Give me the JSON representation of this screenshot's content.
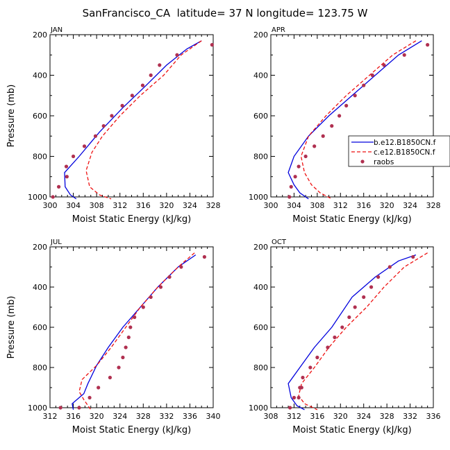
{
  "figure_title": "SanFrancisco_CA  latitude= 37 N longitude= 123.75 W",
  "colors": {
    "model_b": "#0000dd",
    "model_c": "#ee1111",
    "raobs": "#b03050"
  },
  "legend": {
    "entries": [
      "b.e12.B1850CN.f",
      "c.e12.B1850CN.f",
      "raobs"
    ]
  },
  "chart_data": [
    {
      "type": "line",
      "panel": "JAN",
      "xlabel": "Moist Static Energy (kJ/kg)",
      "ylabel": "Pressure (mb)",
      "xlim": [
        300,
        328
      ],
      "xticks": [
        300,
        304,
        308,
        312,
        316,
        320,
        324,
        328
      ],
      "ylim": [
        1000,
        200
      ],
      "yticks": [
        200,
        400,
        600,
        800,
        1000
      ],
      "series": [
        {
          "name": "b.e12.B1850CN.f",
          "style": "solid",
          "x": [
            326.0,
            323.5,
            320.0,
            316.5,
            312.5,
            308.5,
            305.0,
            302.5,
            302.6,
            303.5,
            304.5
          ],
          "y": [
            230,
            270,
            350,
            450,
            560,
            680,
            800,
            880,
            950,
            990,
            1010
          ]
        },
        {
          "name": "c.e12.B1850CN.f",
          "style": "dashed",
          "x": [
            326.0,
            322.5,
            319.5,
            315.5,
            312.0,
            309.0,
            307.2,
            306.2,
            306.8,
            308.5,
            310.5
          ],
          "y": [
            230,
            300,
            400,
            500,
            600,
            700,
            780,
            870,
            950,
            990,
            1010
          ]
        },
        {
          "name": "raobs",
          "style": "markers",
          "x": [
            327.8,
            321.8,
            318.8,
            317.3,
            315.9,
            314.1,
            312.4,
            310.6,
            309.2,
            307.8,
            305.9,
            304.0,
            302.8,
            302.9,
            301.5,
            300.5
          ],
          "y": [
            250,
            300,
            350,
            400,
            450,
            500,
            550,
            600,
            650,
            700,
            750,
            800,
            850,
            900,
            950,
            1000
          ]
        }
      ]
    },
    {
      "type": "line",
      "panel": "APR",
      "xlabel": "Moist Static Energy (kJ/kg)",
      "ylabel": "",
      "xlim": [
        300,
        328
      ],
      "xticks": [
        300,
        304,
        308,
        312,
        316,
        320,
        324,
        328
      ],
      "ylim": [
        1000,
        200
      ],
      "yticks": [
        200,
        400,
        600,
        800,
        1000
      ],
      "series": [
        {
          "name": "b.e12.B1850CN.f",
          "style": "solid",
          "x": [
            326.0,
            322.0,
            318.0,
            314.0,
            310.0,
            306.5,
            304.0,
            303.0,
            304.0,
            305.0,
            306.5
          ],
          "y": [
            230,
            300,
            400,
            500,
            600,
            700,
            800,
            880,
            940,
            980,
            1010
          ]
        },
        {
          "name": "c.e12.B1850CN.f",
          "style": "dashed",
          "x": [
            325.0,
            321.0,
            317.0,
            313.0,
            309.5,
            306.5,
            305.2,
            305.8,
            307.0,
            308.5,
            310.5
          ],
          "y": [
            230,
            300,
            400,
            500,
            600,
            700,
            800,
            880,
            940,
            980,
            1010
          ]
        },
        {
          "name": "raobs",
          "style": "markers",
          "x": [
            327.0,
            323.0,
            319.5,
            317.5,
            316.0,
            314.5,
            313.0,
            311.8,
            310.5,
            309.0,
            307.5,
            306.0,
            304.8,
            304.2,
            303.5,
            303.2
          ],
          "y": [
            250,
            300,
            350,
            400,
            450,
            500,
            550,
            600,
            650,
            700,
            750,
            800,
            850,
            900,
            950,
            1000
          ]
        }
      ]
    },
    {
      "type": "line",
      "panel": "JUL",
      "xlabel": "Moist Static Energy (kJ/kg)",
      "ylabel": "Pressure (mb)",
      "xlim": [
        312,
        340
      ],
      "xticks": [
        312,
        316,
        320,
        324,
        328,
        332,
        336,
        340
      ],
      "ylim": [
        1000,
        200
      ],
      "yticks": [
        200,
        400,
        600,
        800,
        1000
      ],
      "series": [
        {
          "name": "b.e12.B1850CN.f",
          "style": "solid",
          "x": [
            337.0,
            334.0,
            330.5,
            327.5,
            324.5,
            322.0,
            320.0,
            318.5,
            317.8,
            317.0,
            315.8,
            316.0
          ],
          "y": [
            240,
            300,
            400,
            500,
            600,
            700,
            790,
            880,
            930,
            950,
            980,
            1010
          ]
        },
        {
          "name": "c.e12.B1850CN.f",
          "style": "dashed",
          "x": [
            336.8,
            334.0,
            330.5,
            327.5,
            325.0,
            322.5,
            320.0,
            317.5,
            317.0,
            317.8,
            319.0
          ],
          "y": [
            230,
            300,
            400,
            500,
            600,
            700,
            790,
            860,
            920,
            960,
            1010
          ]
        },
        {
          "name": "raobs",
          "style": "markers",
          "x": [
            338.5,
            334.5,
            332.5,
            331.0,
            329.3,
            328.0,
            326.5,
            325.8,
            325.5,
            325.0,
            324.5,
            323.8,
            322.3,
            320.3,
            318.8,
            317.0,
            313.8
          ],
          "y": [
            250,
            300,
            350,
            400,
            450,
            500,
            550,
            600,
            650,
            700,
            750,
            800,
            850,
            900,
            950,
            1000,
            1000
          ]
        }
      ]
    },
    {
      "type": "line",
      "panel": "OCT",
      "xlabel": "Moist Static Energy (kJ/kg)",
      "ylabel": "",
      "xlim": [
        308,
        336
      ],
      "xticks": [
        308,
        312,
        316,
        320,
        324,
        328,
        332,
        336
      ],
      "ylim": [
        1000,
        200
      ],
      "yticks": [
        200,
        400,
        600,
        800,
        1000
      ],
      "series": [
        {
          "name": "b.e12.B1850CN.f",
          "style": "solid",
          "x": [
            333.0,
            330.0,
            326.0,
            322.0,
            318.5,
            315.5,
            313.0,
            311.0,
            311.5,
            312.5,
            313.8
          ],
          "y": [
            240,
            270,
            350,
            450,
            600,
            700,
            800,
            880,
            950,
            990,
            1010
          ]
        },
        {
          "name": "c.e12.B1850CN.f",
          "style": "dashed",
          "x": [
            335.0,
            331.0,
            327.5,
            324.5,
            321.0,
            318.0,
            315.5,
            313.3,
            312.8,
            313.8,
            316.0
          ],
          "y": [
            230,
            300,
            400,
            500,
            600,
            700,
            800,
            880,
            940,
            980,
            1010
          ]
        },
        {
          "name": "raobs",
          "style": "markers",
          "x": [
            332.5,
            328.5,
            326.5,
            325.3,
            324.0,
            322.5,
            321.5,
            320.3,
            319.0,
            317.8,
            316.0,
            314.8,
            313.5,
            313.0,
            313.3,
            312.8,
            312.0,
            311.3
          ],
          "y": [
            250,
            300,
            350,
            400,
            450,
            500,
            550,
            600,
            650,
            700,
            750,
            800,
            850,
            900,
            900,
            950,
            950,
            1000
          ]
        }
      ]
    }
  ]
}
